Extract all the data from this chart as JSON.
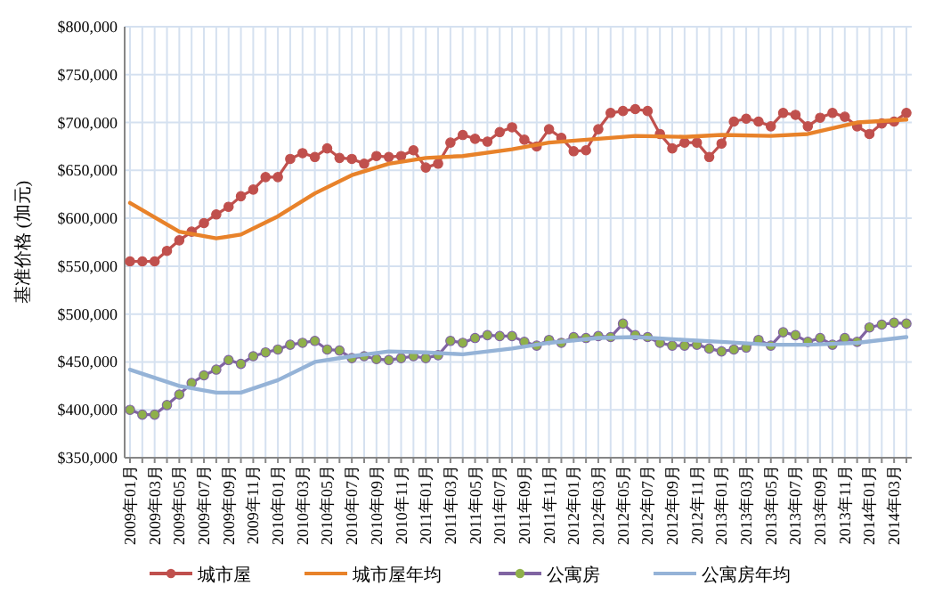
{
  "chart_data": {
    "type": "line",
    "ylabel": "基准价格 (加元)",
    "x": [
      "2009-01",
      "2009-02",
      "2009-03",
      "2009-04",
      "2009-05",
      "2009-06",
      "2009-07",
      "2009-08",
      "2009-09",
      "2009-10",
      "2009-11",
      "2009-12",
      "2010-01",
      "2010-02",
      "2010-03",
      "2010-04",
      "2010-05",
      "2010-06",
      "2010-07",
      "2010-08",
      "2010-09",
      "2010-10",
      "2010-11",
      "2010-12",
      "2011-01",
      "2011-02",
      "2011-03",
      "2011-04",
      "2011-05",
      "2011-06",
      "2011-07",
      "2011-08",
      "2011-09",
      "2011-10",
      "2011-11",
      "2011-12",
      "2012-01",
      "2012-02",
      "2012-03",
      "2012-04",
      "2012-05",
      "2012-06",
      "2012-07",
      "2012-08",
      "2012-09",
      "2012-10",
      "2012-11",
      "2012-12",
      "2013-01",
      "2013-02",
      "2013-03",
      "2013-04",
      "2013-05",
      "2013-06",
      "2013-07",
      "2013-08",
      "2013-09",
      "2013-10",
      "2013-11",
      "2013-12",
      "2014-01",
      "2014-02",
      "2014-03",
      "2014-04"
    ],
    "series": [
      {
        "name": "城市屋",
        "color": "#c0504d",
        "marker": "circle",
        "values": [
          555000,
          555000,
          555000,
          566000,
          577000,
          586000,
          595000,
          604000,
          612000,
          623000,
          630000,
          643000,
          643000,
          662000,
          668000,
          664000,
          673000,
          663000,
          662000,
          657000,
          665000,
          664000,
          665000,
          671000,
          653000,
          657000,
          679000,
          687000,
          683000,
          680000,
          690000,
          695000,
          682000,
          675000,
          693000,
          684000,
          670000,
          671000,
          693000,
          710000,
          712000,
          714000,
          712000,
          688000,
          673000,
          679000,
          679000,
          664000,
          678000,
          701000,
          704000,
          701000,
          696000,
          710000,
          708000,
          696000,
          705000,
          710000,
          706000,
          696000,
          688000,
          699000,
          701000,
          710000
        ]
      },
      {
        "name": "城市屋年均",
        "color": "#e8822a",
        "marker": "none",
        "x": [
          "2009-01",
          "2009-05",
          "2009-08",
          "2009-10",
          "2010-01",
          "2010-04",
          "2010-07",
          "2010-10",
          "2011-01",
          "2011-04",
          "2011-08",
          "2011-11",
          "2012-03",
          "2012-06",
          "2012-10",
          "2013-01",
          "2013-05",
          "2013-08",
          "2013-12",
          "2014-04"
        ],
        "values": [
          616000,
          586000,
          579000,
          583000,
          602000,
          626000,
          645000,
          657000,
          663000,
          665000,
          672000,
          679000,
          683000,
          686000,
          685000,
          687000,
          686000,
          688000,
          700000,
          703000
        ]
      },
      {
        "name": "公寓房",
        "color": "#8064a2",
        "marker": "circle",
        "values": [
          400000,
          395000,
          395000,
          405000,
          416000,
          428000,
          436000,
          442000,
          452000,
          448000,
          456000,
          460000,
          463000,
          468000,
          470000,
          472000,
          463000,
          462000,
          454000,
          456000,
          453000,
          452000,
          454000,
          456000,
          454000,
          457000,
          472000,
          470000,
          475000,
          478000,
          477000,
          477000,
          471000,
          467000,
          473000,
          470000,
          476000,
          475000,
          477000,
          476000,
          490000,
          478000,
          476000,
          470000,
          467000,
          467000,
          468000,
          464000,
          461000,
          463000,
          465000,
          473000,
          467000,
          481000,
          478000,
          471000,
          475000,
          468000,
          475000,
          471000,
          486000,
          489000,
          491000,
          490000
        ]
      },
      {
        "name": "公寓房年均",
        "color": "#95b3d7",
        "marker": "none",
        "x": [
          "2009-01",
          "2009-05",
          "2009-08",
          "2009-10",
          "2010-01",
          "2010-04",
          "2010-07",
          "2010-10",
          "2011-01",
          "2011-04",
          "2011-08",
          "2011-11",
          "2012-03",
          "2012-06",
          "2012-10",
          "2013-01",
          "2013-05",
          "2013-08",
          "2013-12",
          "2014-04"
        ],
        "values": [
          442000,
          425000,
          418000,
          418000,
          431000,
          450000,
          456000,
          461000,
          460000,
          458000,
          464000,
          470000,
          475000,
          476000,
          473000,
          471000,
          468000,
          468000,
          470000,
          476000
        ]
      }
    ],
    "xlim": [
      "2009-01",
      "2014-04"
    ],
    "xticks": [
      {
        "value": "2009-01",
        "label": "2009年01月"
      },
      {
        "value": "2009-02",
        "label": null
      },
      {
        "value": "2009-03",
        "label": "2009年03月"
      },
      {
        "value": "2009-04",
        "label": null
      },
      {
        "value": "2009-05",
        "label": "2009年05月"
      },
      {
        "value": "2009-06",
        "label": null
      },
      {
        "value": "2009-07",
        "label": "2009年07月"
      },
      {
        "value": "2009-08",
        "label": null
      },
      {
        "value": "2009-09",
        "label": "2009年09月"
      },
      {
        "value": "2009-10",
        "label": null
      },
      {
        "value": "2009-11",
        "label": "2009年11月"
      },
      {
        "value": "2009-12",
        "label": null
      },
      {
        "value": "2010-01",
        "label": "2010年01月"
      },
      {
        "value": "2010-02",
        "label": null
      },
      {
        "value": "2010-03",
        "label": "2010年03月"
      },
      {
        "value": "2010-04",
        "label": null
      },
      {
        "value": "2010-05",
        "label": "2010年05月"
      },
      {
        "value": "2010-06",
        "label": null
      },
      {
        "value": "2010-07",
        "label": "2010年07月"
      },
      {
        "value": "2010-08",
        "label": null
      },
      {
        "value": "2010-09",
        "label": "2010年09月"
      },
      {
        "value": "2010-10",
        "label": null
      },
      {
        "value": "2010-11",
        "label": "2010年11月"
      },
      {
        "value": "2010-12",
        "label": null
      },
      {
        "value": "2011-01",
        "label": "2011年01月"
      },
      {
        "value": "2011-02",
        "label": null
      },
      {
        "value": "2011-03",
        "label": "2011年03月"
      },
      {
        "value": "2011-04",
        "label": null
      },
      {
        "value": "2011-05",
        "label": "2011年05月"
      },
      {
        "value": "2011-06",
        "label": null
      },
      {
        "value": "2011-07",
        "label": "2011年07月"
      },
      {
        "value": "2011-08",
        "label": null
      },
      {
        "value": "2011-09",
        "label": "2011年09月"
      },
      {
        "value": "2011-10",
        "label": null
      },
      {
        "value": "2011-11",
        "label": "2011年11月"
      },
      {
        "value": "2011-12",
        "label": null
      },
      {
        "value": "2012-01",
        "label": "2012年01月"
      },
      {
        "value": "2012-02",
        "label": null
      },
      {
        "value": "2012-03",
        "label": "2012年03月"
      },
      {
        "value": "2012-04",
        "label": null
      },
      {
        "value": "2012-05",
        "label": "2012年05月"
      },
      {
        "value": "2012-06",
        "label": null
      },
      {
        "value": "2012-07",
        "label": "2012年07月"
      },
      {
        "value": "2012-08",
        "label": null
      },
      {
        "value": "2012-09",
        "label": "2012年09月"
      },
      {
        "value": "2012-10",
        "label": null
      },
      {
        "value": "2012-11",
        "label": "2012年11月"
      },
      {
        "value": "2012-12",
        "label": null
      },
      {
        "value": "2013-01",
        "label": "2013年01月"
      },
      {
        "value": "2013-02",
        "label": null
      },
      {
        "value": "2013-03",
        "label": "2013年03月"
      },
      {
        "value": "2013-04",
        "label": null
      },
      {
        "value": "2013-05",
        "label": "2013年05月"
      },
      {
        "value": "2013-06",
        "label": null
      },
      {
        "value": "2013-07",
        "label": "2013年07月"
      },
      {
        "value": "2013-08",
        "label": null
      },
      {
        "value": "2013-09",
        "label": "2013年09月"
      },
      {
        "value": "2013-10",
        "label": null
      },
      {
        "value": "2013-11",
        "label": "2013年11月"
      },
      {
        "value": "2013-12",
        "label": null
      },
      {
        "value": "2014-01",
        "label": "2014年01月"
      },
      {
        "value": "2014-02",
        "label": null
      },
      {
        "value": "2014-03",
        "label": "2014年03月"
      },
      {
        "value": "2014-04",
        "label": null
      }
    ],
    "ylim": [
      350000,
      800000
    ],
    "yticks": [
      {
        "value": 350000,
        "label": "$350,000"
      },
      {
        "value": 400000,
        "label": "$400,000"
      },
      {
        "value": 450000,
        "label": "$450,000"
      },
      {
        "value": 500000,
        "label": "$500,000"
      },
      {
        "value": 550000,
        "label": "$550,000"
      },
      {
        "value": 600000,
        "label": "$600,000"
      },
      {
        "value": 650000,
        "label": "$650,000"
      },
      {
        "value": 700000,
        "label": "$700,000"
      },
      {
        "value": 750000,
        "label": "$750,000"
      },
      {
        "value": 800000,
        "label": "$800,000"
      }
    ],
    "grid": true,
    "legend": "bottom",
    "line_style": "solid"
  }
}
